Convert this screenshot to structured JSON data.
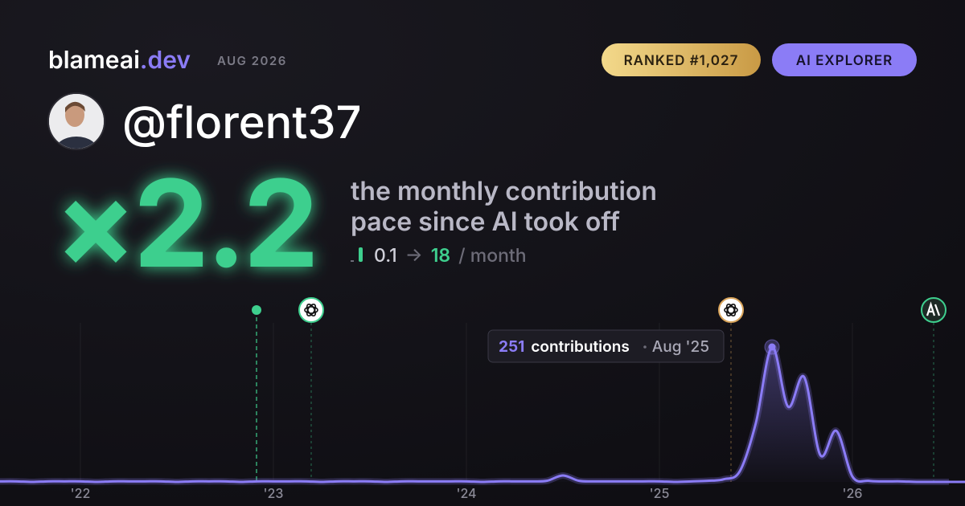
{
  "brand": {
    "name": "blameai",
    "tld": ".dev",
    "date": "AUG 2026"
  },
  "badges": [
    "RANKED #1,027",
    "AI EXPLORER"
  ],
  "handle": "@florent37",
  "headline": {
    "multiplier": "×2.2",
    "subtitle": [
      "the monthly contribution",
      "pace since AI took off"
    ],
    "pace_from": 0.1,
    "arrow": "→",
    "pace_to": 18,
    "pace_unit": "/ month"
  },
  "chart_data": {
    "type": "line",
    "categories": [
      null,
      null,
      null,
      null,
      null,
      "'22",
      null,
      null,
      null,
      null,
      null,
      null,
      null,
      null,
      null,
      null,
      null,
      "'23",
      null,
      null,
      null,
      null,
      null,
      null,
      null,
      null,
      null,
      null,
      null,
      "'24",
      null,
      null,
      null,
      null,
      null,
      null,
      null,
      null,
      null,
      null,
      null,
      "'25",
      null,
      null,
      null,
      null,
      null,
      null,
      null,
      null,
      null,
      null,
      null,
      "'26",
      null,
      null,
      null,
      null,
      null,
      null
    ],
    "series": [
      {
        "name": "contributions",
        "color": "#8b7cf6",
        "values": [
          1,
          1,
          0,
          1,
          1,
          1,
          0,
          1,
          1,
          1,
          1,
          0,
          1,
          1,
          1,
          0,
          1,
          1,
          1,
          1,
          0,
          1,
          1,
          1,
          0,
          1,
          1,
          1,
          1,
          1,
          0,
          1,
          1,
          1,
          2,
          12,
          2,
          1,
          1,
          1,
          1,
          1,
          0,
          1,
          2,
          5,
          20,
          110,
          251,
          140,
          195,
          50,
          95,
          10,
          2,
          1,
          1,
          0,
          0,
          0
        ]
      }
    ],
    "ylim": [
      0,
      260
    ],
    "tooltip": {
      "unit": "contributions",
      "date": "Aug '25"
    }
  }
}
